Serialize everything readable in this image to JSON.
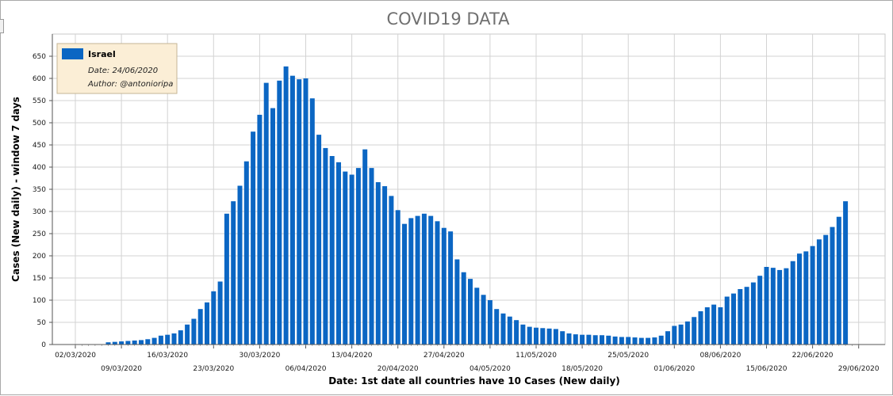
{
  "chart_data": {
    "type": "bar",
    "title": "COVID19 DATA",
    "xlabel": "Date: 1st date all countries have 10 Cases (New daily)",
    "ylabel": "Cases (New daily) - window 7 days",
    "ylim": [
      0,
      700
    ],
    "yticks": [
      0,
      50,
      100,
      150,
      200,
      250,
      300,
      350,
      400,
      450,
      500,
      550,
      600,
      650
    ],
    "grid": true,
    "legend_position": "top-left",
    "legend_notes": [
      "Date: 24/06/2020",
      "Author: @antonioripa"
    ],
    "bar_color": "#0b66c3",
    "x_start": "02/03/2020",
    "x_end": "29/06/2020",
    "x_ticks": [
      "02/03/2020",
      "09/03/2020",
      "16/03/2020",
      "23/03/2020",
      "30/03/2020",
      "06/04/2020",
      "13/04/2020",
      "20/04/2020",
      "27/04/2020",
      "04/05/2020",
      "11/05/2020",
      "18/05/2020",
      "25/05/2020",
      "01/06/2020",
      "08/06/2020",
      "15/06/2020",
      "22/06/2020",
      "29/06/2020"
    ],
    "series": [
      {
        "name": "Israel",
        "start_date": "07/03/2020",
        "values": [
          5,
          6,
          7,
          8,
          9,
          10,
          12,
          15,
          20,
          22,
          25,
          32,
          45,
          58,
          80,
          95,
          120,
          142,
          295,
          323,
          358,
          413,
          480,
          518,
          590,
          533,
          595,
          627,
          606,
          598,
          600,
          555,
          473,
          443,
          425,
          411,
          390,
          383,
          398,
          440,
          398,
          366,
          357,
          335,
          303,
          272,
          285,
          290,
          295,
          290,
          278,
          263,
          255,
          192,
          163,
          148,
          128,
          112,
          100,
          80,
          70,
          63,
          55,
          45,
          40,
          38,
          37,
          36,
          35,
          30,
          25,
          23,
          22,
          22,
          21,
          21,
          20,
          18,
          17,
          17,
          16,
          15,
          15,
          16,
          20,
          30,
          42,
          45,
          52,
          62,
          75,
          84,
          90,
          84,
          108,
          115,
          125,
          130,
          140,
          155,
          175,
          173,
          168,
          172,
          188,
          205,
          210,
          222,
          237,
          247,
          265,
          288,
          323
        ]
      }
    ]
  }
}
